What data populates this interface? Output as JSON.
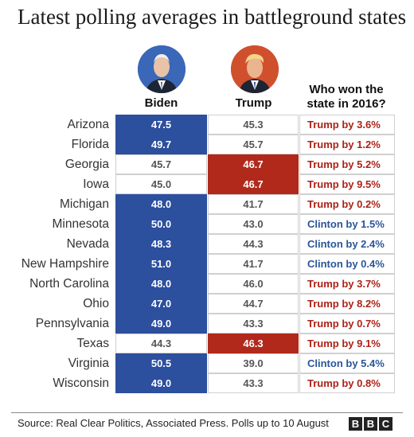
{
  "title": "Latest polling averages in battleground states",
  "headers": {
    "biden": "Biden",
    "trump": "Trump",
    "won": "Who won the state in 2016?"
  },
  "colors": {
    "biden_lead": "#2c4f9e",
    "trump_lead": "#b0291b",
    "rep_text": "#ad2217",
    "dem_text": "#2a5599"
  },
  "chart_data": {
    "type": "table",
    "columns": [
      "",
      "Biden",
      "Trump",
      "Who won the state in 2016?"
    ],
    "rows": [
      {
        "state": "Arizona",
        "biden": "47.5",
        "trump": "45.3",
        "won": "Trump by 3.6%",
        "lead": "biden",
        "party": "rep"
      },
      {
        "state": "Florida",
        "biden": "49.7",
        "trump": "45.7",
        "won": "Trump by 1.2%",
        "lead": "biden",
        "party": "rep"
      },
      {
        "state": "Georgia",
        "biden": "45.7",
        "trump": "46.7",
        "won": "Trump by 5.2%",
        "lead": "trump",
        "party": "rep"
      },
      {
        "state": "Iowa",
        "biden": "45.0",
        "trump": "46.7",
        "won": "Trump by 9.5%",
        "lead": "trump",
        "party": "rep"
      },
      {
        "state": "Michigan",
        "biden": "48.0",
        "trump": "41.7",
        "won": "Trump by 0.2%",
        "lead": "biden",
        "party": "rep"
      },
      {
        "state": "Minnesota",
        "biden": "50.0",
        "trump": "43.0",
        "won": "Clinton by 1.5%",
        "lead": "biden",
        "party": "dem"
      },
      {
        "state": "Nevada",
        "biden": "48.3",
        "trump": "44.3",
        "won": "Clinton by 2.4%",
        "lead": "biden",
        "party": "dem"
      },
      {
        "state": "New Hampshire",
        "biden": "51.0",
        "trump": "41.7",
        "won": "Clinton by 0.4%",
        "lead": "biden",
        "party": "dem"
      },
      {
        "state": "North Carolina",
        "biden": "48.0",
        "trump": "46.0",
        "won": "Trump by 3.7%",
        "lead": "biden",
        "party": "rep"
      },
      {
        "state": "Ohio",
        "biden": "47.0",
        "trump": "44.7",
        "won": "Trump by 8.2%",
        "lead": "biden",
        "party": "rep"
      },
      {
        "state": "Pennsylvania",
        "biden": "49.0",
        "trump": "43.3",
        "won": "Trump by 0.7%",
        "lead": "biden",
        "party": "rep"
      },
      {
        "state": "Texas",
        "biden": "44.3",
        "trump": "46.3",
        "won": "Trump by 9.1%",
        "lead": "trump",
        "party": "rep"
      },
      {
        "state": "Virginia",
        "biden": "50.5",
        "trump": "39.0",
        "won": "Clinton by 5.4%",
        "lead": "biden",
        "party": "dem"
      },
      {
        "state": "Wisconsin",
        "biden": "49.0",
        "trump": "43.3",
        "won": "Trump by 0.8%",
        "lead": "biden",
        "party": "rep"
      }
    ]
  },
  "footer": {
    "source": "Source: Real Clear Politics, Associated Press. Polls up to 10 August",
    "logo_letters": [
      "B",
      "B",
      "C"
    ]
  }
}
